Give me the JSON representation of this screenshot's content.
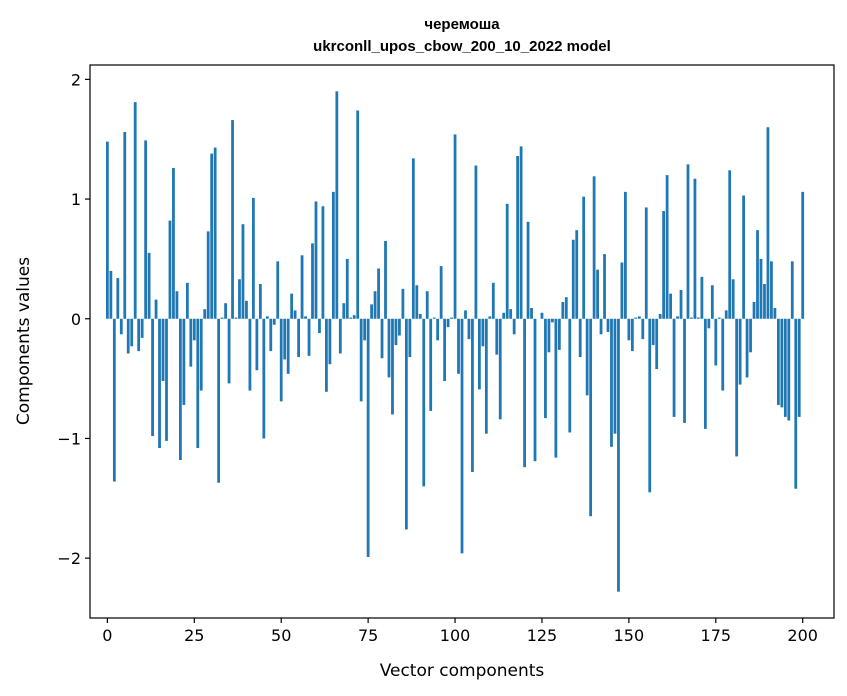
{
  "chart_data": {
    "type": "bar",
    "title_line1": "черемоша",
    "title_line2": "ukrconll_upos_cbow_200_10_2022 model",
    "xlabel": "Vector components",
    "ylabel": "Components values",
    "xlim": [
      -5,
      209
    ],
    "ylim": [
      -2.5,
      2.12
    ],
    "xticks": [
      0,
      25,
      50,
      75,
      100,
      125,
      150,
      175,
      200
    ],
    "yticks": [
      -2,
      -1,
      0,
      1,
      2
    ],
    "ytick_labels": [
      "−2",
      "−1",
      "0",
      "1",
      "2"
    ],
    "grid": false,
    "bar_color": "#1f77b4",
    "values": [
      1.48,
      0.4,
      -1.36,
      0.34,
      -0.13,
      1.56,
      -0.29,
      -0.23,
      1.81,
      -0.27,
      -0.16,
      1.49,
      0.55,
      -0.98,
      0.16,
      -1.08,
      -0.52,
      -1.02,
      0.82,
      1.26,
      0.23,
      -1.18,
      -0.72,
      0.3,
      -0.4,
      -0.18,
      -1.08,
      -0.6,
      0.08,
      0.73,
      1.38,
      1.43,
      -1.37,
      0.01,
      0.13,
      -0.54,
      1.66,
      0.01,
      0.33,
      0.79,
      0.15,
      -0.6,
      1.01,
      -0.43,
      0.29,
      -1.0,
      0.02,
      -0.27,
      -0.05,
      0.48,
      -0.69,
      -0.34,
      -0.46,
      0.21,
      0.07,
      -0.32,
      0.53,
      0.02,
      -0.31,
      0.63,
      0.98,
      -0.12,
      0.94,
      -0.61,
      -0.38,
      1.06,
      1.9,
      -0.29,
      0.13,
      0.5,
      0.01,
      0.03,
      1.74,
      -0.69,
      -0.18,
      -1.99,
      0.12,
      0.23,
      0.42,
      -0.33,
      0.65,
      -0.49,
      -0.8,
      -0.22,
      -0.14,
      0.25,
      -1.76,
      -0.32,
      1.34,
      0.28,
      0.04,
      -1.4,
      0.23,
      -0.77,
      0.01,
      -0.18,
      0.44,
      -0.52,
      -0.07,
      0.01,
      1.54,
      -0.46,
      -1.96,
      0.07,
      -0.17,
      -1.28,
      1.28,
      -0.59,
      -0.23,
      -0.96,
      0.02,
      0.3,
      -0.3,
      -0.84,
      0.05,
      0.96,
      0.08,
      -0.13,
      1.36,
      1.44,
      -1.24,
      0.81,
      0.09,
      -1.19,
      0.0,
      0.05,
      -0.83,
      -0.28,
      -0.03,
      -1.16,
      -0.26,
      0.14,
      0.18,
      -0.95,
      0.66,
      0.74,
      -0.32,
      1.02,
      -0.64,
      -1.65,
      1.19,
      0.41,
      -0.13,
      0.54,
      -0.11,
      -1.07,
      -0.96,
      -2.28,
      0.47,
      1.06,
      -0.18,
      -0.27,
      0.01,
      0.02,
      -0.17,
      0.93,
      -1.45,
      -0.22,
      -0.42,
      0.04,
      0.9,
      1.2,
      0.21,
      -0.82,
      0.02,
      0.24,
      -0.87,
      1.29,
      0.01,
      1.17,
      0.01,
      0.35,
      -0.92,
      -0.08,
      0.28,
      -0.39,
      0.01,
      -0.6,
      0.07,
      1.24,
      0.33,
      -1.15,
      -0.55,
      1.03,
      -0.49,
      -0.28,
      0.14,
      0.74,
      0.5,
      0.29,
      1.6,
      0.48,
      0.09,
      -0.72,
      -0.74,
      -0.82,
      -0.85,
      0.48,
      -1.42,
      -0.82,
      1.06
    ]
  }
}
